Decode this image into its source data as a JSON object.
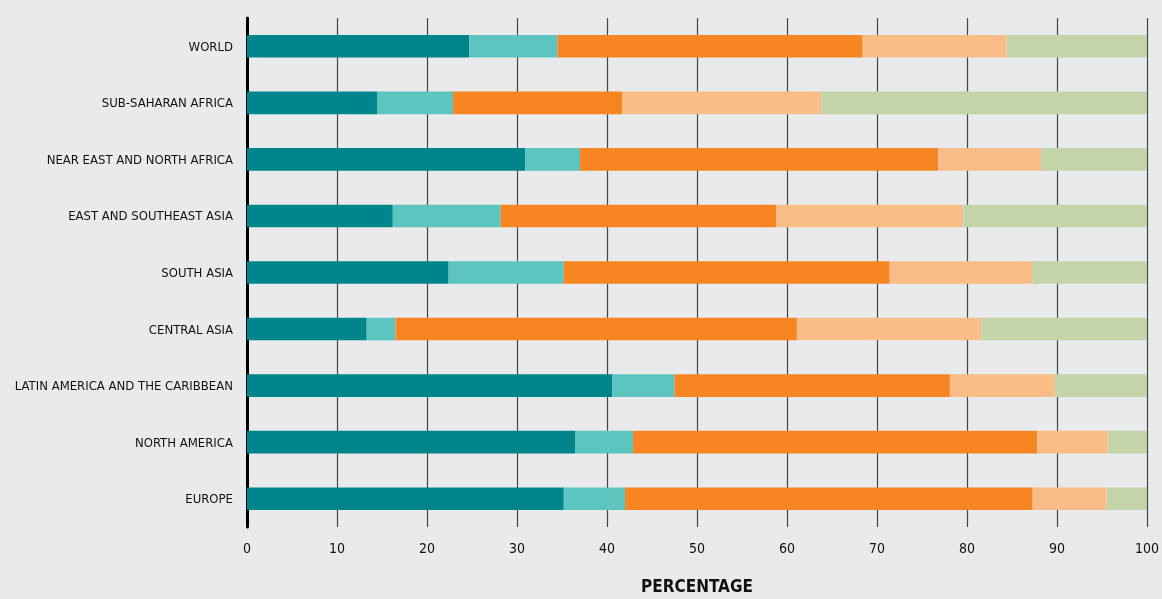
{
  "chart_data": {
    "type": "bar",
    "orientation": "horizontal",
    "stacked": true,
    "xlabel": "PERCENTAGE",
    "categories": [
      "WORLD",
      "SUB-SAHARAN AFRICA",
      "NEAR EAST AND NORTH AFRICA",
      "EAST AND SOUTHEAST ASIA",
      "SOUTH ASIA",
      "CENTRAL ASIA",
      "LATIN AMERICA AND THE CARIBBEAN",
      "NORTH AMERICA",
      "EUROPE"
    ],
    "series": [
      {
        "color": "#00868a",
        "values": [
          24.7,
          14.5,
          30.9,
          16.2,
          22.4,
          13.3,
          40.6,
          36.5,
          35.2
        ]
      },
      {
        "color": "#5cc5bf",
        "values": [
          9.8,
          8.4,
          6.1,
          12.0,
          12.8,
          3.2,
          6.9,
          6.4,
          6.8
        ]
      },
      {
        "color": "#f68522",
        "values": [
          33.9,
          18.8,
          39.8,
          30.6,
          36.2,
          44.6,
          30.6,
          44.9,
          45.3
        ]
      },
      {
        "color": "#fbbd87",
        "values": [
          16.0,
          22.1,
          11.4,
          20.8,
          15.9,
          20.5,
          11.7,
          7.9,
          8.2
        ]
      },
      {
        "color": "#c3d5a8",
        "values": [
          15.6,
          36.2,
          11.8,
          20.4,
          12.7,
          18.4,
          10.2,
          4.3,
          4.5
        ]
      }
    ],
    "xlim": [
      0,
      100
    ],
    "xticks": [
      0,
      10,
      20,
      30,
      40,
      50,
      60,
      70,
      80,
      90,
      100
    ],
    "grid": "x"
  }
}
